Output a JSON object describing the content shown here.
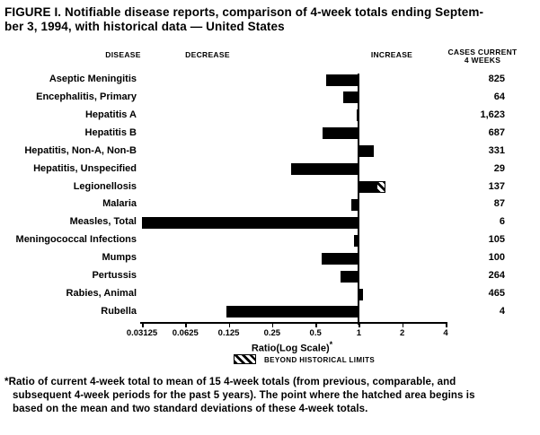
{
  "title": {
    "line1": "FIGURE I. Notifiable disease reports, comparison of 4-week totals ending Septem-",
    "line2": "ber 3, 1994, with historical data — United States"
  },
  "chart_data": {
    "type": "bar",
    "orientation": "horizontal",
    "title": "FIGURE I. Notifiable disease reports, comparison of 4-week totals ending September 3, 1994, with historical data — United States",
    "columns": {
      "disease": "DISEASE",
      "decrease": "DECREASE",
      "increase": "INCREASE",
      "cases_line1": "CASES CURRENT",
      "cases_line2": "4 WEEKS"
    },
    "x_axis": {
      "label": "Ratio(Log Scale)",
      "footnote_marker": "*",
      "scale": "log2",
      "min": 0.03125,
      "max": 4,
      "reference_value": 1,
      "ticks": [
        0.03125,
        0.0625,
        0.125,
        0.25,
        0.5,
        1,
        2,
        4
      ],
      "tick_labels": [
        "0.03125",
        "0.0625",
        "0.125",
        "0.25",
        "0.5",
        "1",
        "2",
        "4"
      ]
    },
    "rows": [
      {
        "disease": "Aseptic Meningitis",
        "ratio": 0.59,
        "cases": "825"
      },
      {
        "disease": "Encephalitis, Primary",
        "ratio": 0.78,
        "cases": "64"
      },
      {
        "disease": "Hepatitis A",
        "ratio": 0.96,
        "cases": "1,623"
      },
      {
        "disease": "Hepatitis B",
        "ratio": 0.56,
        "cases": "687"
      },
      {
        "disease": "Hepatitis, Non-A, Non-B",
        "ratio": 1.27,
        "cases": "331"
      },
      {
        "disease": "Hepatitis, Unspecified",
        "ratio": 0.34,
        "cases": "29"
      },
      {
        "disease": "Legionellosis",
        "ratio": 1.53,
        "cases": "137",
        "beyond_historical_limits": true,
        "hatch_start": 1.32
      },
      {
        "disease": "Malaria",
        "ratio": 0.89,
        "cases": "87"
      },
      {
        "disease": "Measles, Total",
        "ratio": 0.03,
        "cases": "6"
      },
      {
        "disease": "Meningococcal Infections",
        "ratio": 0.93,
        "cases": "105"
      },
      {
        "disease": "Mumps",
        "ratio": 0.55,
        "cases": "100"
      },
      {
        "disease": "Pertussis",
        "ratio": 0.75,
        "cases": "264"
      },
      {
        "disease": "Rabies, Animal",
        "ratio": 1.07,
        "cases": "465"
      },
      {
        "disease": "Rubella",
        "ratio": 0.12,
        "cases": "4"
      }
    ],
    "legend": {
      "swatch": "diagonal-hatch",
      "label": "BEYOND HISTORICAL LIMITS"
    }
  },
  "footnote": {
    "lines": [
      "*Ratio of current 4-week total to mean of 15 4-week totals (from previous, comparable, and",
      "subsequent 4-week periods for the past 5 years). The point where the hatched area begins is",
      "based on the mean and two standard deviations of these 4-week totals."
    ]
  },
  "colors": {
    "bar": "#000000",
    "text": "#000000",
    "background": "#ffffff"
  }
}
